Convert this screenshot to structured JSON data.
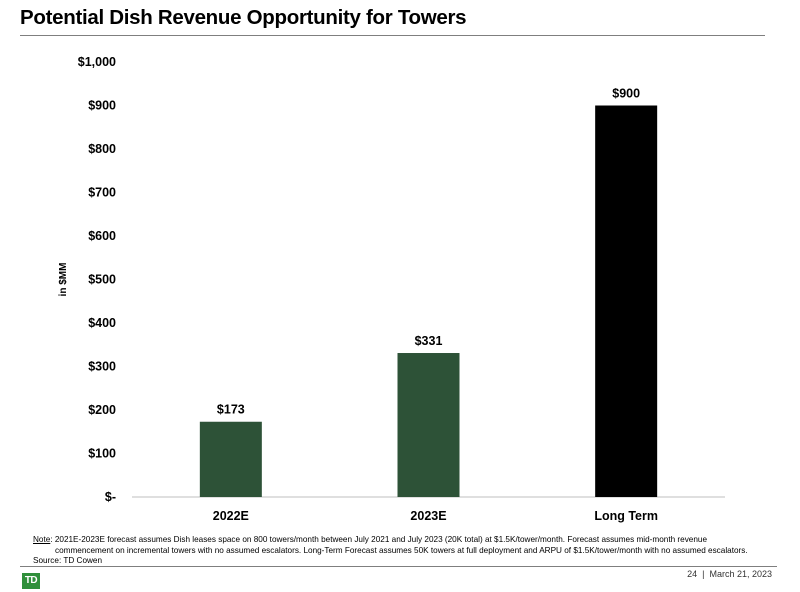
{
  "title": "Potential Dish Revenue Opportunity for Towers",
  "chart_data": {
    "type": "bar",
    "categories": [
      "2022E",
      "2023E",
      "Long Term"
    ],
    "values": [
      173,
      331,
      900
    ],
    "data_labels": [
      "$173",
      "$331",
      "$900"
    ],
    "bar_colors": [
      "#2d5237",
      "#2d5237",
      "#000000"
    ],
    "ylabel": "in $MM",
    "ylim": [
      0,
      1000
    ],
    "yticks": [
      0,
      100,
      200,
      300,
      400,
      500,
      600,
      700,
      800,
      900,
      1000
    ],
    "ytick_labels": [
      "$-",
      "$100",
      "$200",
      "$300",
      "$400",
      "$500",
      "$600",
      "$700",
      "$800",
      "$900",
      "$1,000"
    ],
    "grid": false,
    "legend": "none"
  },
  "note": {
    "label": "Note",
    "line1": ": 2021E-2023E forecast assumes Dish leases space on 800 towers/month between July 2021 and July 2023 (20K total) at $1.5K/tower/month. Forecast assumes mid-month revenue",
    "line2": "commencement on incremental towers with no assumed escalators. Long-Term Forecast assumes 50K towers at full deployment and ARPU of $1.5K/tower/month with no assumed escalators.",
    "source": "Source: TD Cowen"
  },
  "footer": {
    "page": "24",
    "separator": "|",
    "date": "March 21, 2023",
    "logo_text": "TD"
  }
}
